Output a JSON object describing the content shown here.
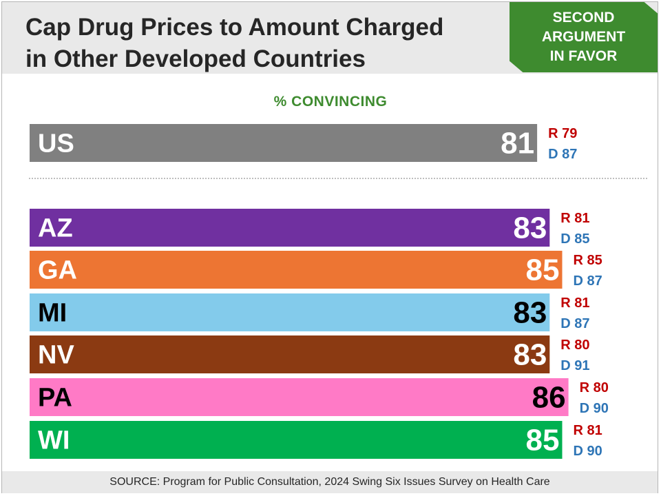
{
  "header": {
    "title": " Cap Drug Prices to Amount Charged\nin Other Developed Countries",
    "badge": "SECOND\nARGUMENT\nIN FAVOR"
  },
  "chart_data": {
    "type": "bar",
    "orientation": "horizontal",
    "subtitle": "% CONVINCING",
    "categories": [
      "US",
      "AZ",
      "GA",
      "MI",
      "NV",
      "PA",
      "WI"
    ],
    "values": [
      81,
      83,
      85,
      83,
      83,
      86,
      85
    ],
    "republican": [
      "R 79",
      "R 81",
      "R 85",
      "R 81",
      "R 80",
      "R 80",
      "R 81"
    ],
    "democrat": [
      "D 87",
      "D 85",
      "D 87",
      "D 87",
      "D 91",
      "D 90",
      "D 90"
    ],
    "bar_colors": [
      "#808080",
      "#7030a0",
      "#ed7533",
      "#83cbeb",
      "#8b3a12",
      "#ff7ac6",
      "#00b050"
    ],
    "label_colors": [
      "#ffffff",
      "#ffffff",
      "#ffffff",
      "#000000",
      "#ffffff",
      "#000000",
      "#ffffff"
    ],
    "r_color": "#c00000",
    "d_color": "#2e75b6",
    "xlim": [
      0,
      100
    ],
    "grid": false,
    "legend": "none"
  },
  "footer": {
    "source": "SOURCE: Program for Public Consultation, 2024 Swing Six Issues Survey on Health Care"
  }
}
